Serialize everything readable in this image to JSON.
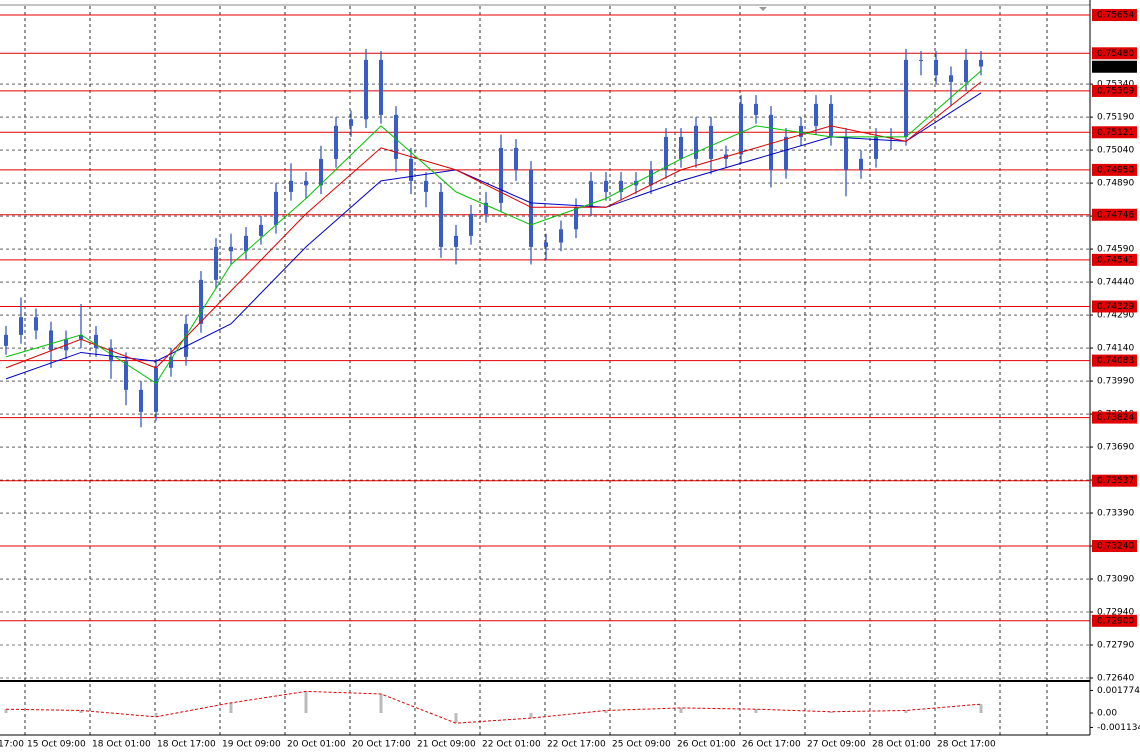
{
  "chart_data": {
    "type": "candlestick",
    "x_labels": [
      "17:00",
      "15 Oct 09:00",
      "18 Oct 01:00",
      "18 Oct 17:00",
      "19 Oct 09:00",
      "20 Oct 01:00",
      "20 Oct 17:00",
      "21 Oct 09:00",
      "22 Oct 01:00",
      "22 Oct 17:00",
      "25 Oct 09:00",
      "26 Oct 01:00",
      "26 Oct 17:00",
      "27 Oct 09:00",
      "28 Oct 01:00",
      "28 Oct 17:00"
    ],
    "open": [
      0.7415,
      0.742,
      0.7428,
      0.7422,
      0.7413,
      0.7418,
      0.742,
      0.7414,
      0.7408,
      0.7395,
      0.7385,
      0.7405,
      0.741,
      0.7425,
      0.7445,
      0.746,
      0.7458,
      0.7465,
      0.747,
      0.7485,
      0.749,
      0.7488,
      0.75,
      0.7515,
      0.7518,
      0.7545,
      0.752,
      0.75,
      0.749,
      0.7485,
      0.746,
      0.7465,
      0.7475,
      0.748,
      0.7505,
      0.7495,
      0.746,
      0.7462,
      0.7468,
      0.7478,
      0.749,
      0.7485,
      0.749,
      0.7488,
      0.7495,
      0.751,
      0.75,
      0.7515,
      0.75,
      0.7502,
      0.7525,
      0.752,
      0.7495,
      0.751,
      0.7515,
      0.7525,
      0.751,
      0.7495,
      0.75,
      0.751,
      0.751,
      0.7545,
      0.7545,
      0.7538,
      0.7535,
      0.7545
    ],
    "high": [
      0.7424,
      0.7437,
      0.7432,
      0.7426,
      0.7422,
      0.7434,
      0.7424,
      0.7418,
      0.7412,
      0.7399,
      0.7409,
      0.7414,
      0.7429,
      0.7449,
      0.7464,
      0.7466,
      0.7469,
      0.7474,
      0.7489,
      0.7498,
      0.7494,
      0.7506,
      0.7519,
      0.7522,
      0.755,
      0.7549,
      0.7524,
      0.7505,
      0.7494,
      0.7489,
      0.747,
      0.7479,
      0.7485,
      0.7511,
      0.7509,
      0.7499,
      0.7466,
      0.7472,
      0.7482,
      0.7494,
      0.7494,
      0.7494,
      0.7494,
      0.7499,
      0.7514,
      0.7514,
      0.7519,
      0.7519,
      0.7506,
      0.7529,
      0.7529,
      0.7524,
      0.7514,
      0.7519,
      0.7529,
      0.7529,
      0.7514,
      0.7504,
      0.7514,
      0.7514,
      0.755,
      0.7549,
      0.7549,
      0.7542,
      0.755,
      0.7549
    ],
    "low": [
      0.7411,
      0.7416,
      0.7418,
      0.7405,
      0.7409,
      0.7414,
      0.741,
      0.74,
      0.7388,
      0.7378,
      0.7381,
      0.7401,
      0.7406,
      0.7421,
      0.7441,
      0.7452,
      0.7454,
      0.7461,
      0.7466,
      0.7481,
      0.7482,
      0.7484,
      0.7496,
      0.751,
      0.7514,
      0.7516,
      0.7494,
      0.7484,
      0.7478,
      0.7455,
      0.7452,
      0.7461,
      0.7471,
      0.7476,
      0.749,
      0.7452,
      0.7454,
      0.7458,
      0.7464,
      0.7474,
      0.7481,
      0.7481,
      0.7484,
      0.7484,
      0.7491,
      0.7496,
      0.7496,
      0.7493,
      0.7496,
      0.7498,
      0.7516,
      0.7487,
      0.7491,
      0.7506,
      0.7511,
      0.7506,
      0.7483,
      0.7491,
      0.7496,
      0.7504,
      0.7506,
      0.7538,
      0.7534,
      0.7524,
      0.7531,
      0.7538
    ],
    "close": [
      0.742,
      0.7428,
      0.7422,
      0.7413,
      0.7418,
      0.742,
      0.7414,
      0.7408,
      0.7395,
      0.7385,
      0.7405,
      0.741,
      0.7425,
      0.7445,
      0.746,
      0.7458,
      0.7465,
      0.747,
      0.7485,
      0.749,
      0.7488,
      0.75,
      0.7515,
      0.7518,
      0.7545,
      0.752,
      0.75,
      0.749,
      0.7485,
      0.746,
      0.7465,
      0.7475,
      0.748,
      0.7505,
      0.7495,
      0.746,
      0.7462,
      0.7468,
      0.7478,
      0.749,
      0.7485,
      0.749,
      0.7488,
      0.7495,
      0.751,
      0.75,
      0.7515,
      0.75,
      0.7502,
      0.7525,
      0.752,
      0.7495,
      0.751,
      0.7515,
      0.7525,
      0.751,
      0.7495,
      0.75,
      0.751,
      0.751,
      0.7545,
      0.7545,
      0.7538,
      0.7535,
      0.7545,
      0.7542
    ],
    "candle_color": "#3a5cc7",
    "ma_x": [
      0,
      5,
      10,
      15,
      20,
      25,
      30,
      35,
      40,
      45,
      50,
      55,
      60,
      65
    ],
    "series": [
      {
        "color": "#0000c8",
        "values": [
          0.74,
          0.7412,
          0.7408,
          0.7425,
          0.746,
          0.749,
          0.7495,
          0.748,
          0.7478,
          0.749,
          0.75,
          0.751,
          0.7508,
          0.753
        ]
      },
      {
        "color": "#e00000",
        "values": [
          0.7405,
          0.7418,
          0.7405,
          0.744,
          0.7475,
          0.7505,
          0.7495,
          0.7478,
          0.7478,
          0.7495,
          0.7505,
          0.7515,
          0.7508,
          0.7535
        ]
      },
      {
        "color": "#00c000",
        "values": [
          0.741,
          0.742,
          0.7398,
          0.7452,
          0.7482,
          0.7515,
          0.7485,
          0.747,
          0.7482,
          0.75,
          0.7515,
          0.751,
          0.751,
          0.754
        ]
      }
    ],
    "ylim": [
      0.7264,
      0.75686
    ],
    "yticks": [
      {
        "value": 0.7534,
        "label": "0.75340"
      },
      {
        "value": 0.7519,
        "label": "0.75190"
      },
      {
        "value": 0.7504,
        "label": "0.75040"
      },
      {
        "value": 0.7489,
        "label": "0.74890"
      },
      {
        "value": 0.7474,
        "label": "0.74740"
      },
      {
        "value": 0.7459,
        "label": "0.74590"
      },
      {
        "value": 0.7444,
        "label": "0.74440"
      },
      {
        "value": 0.7429,
        "label": "0.74290"
      },
      {
        "value": 0.7414,
        "label": "0.74140"
      },
      {
        "value": 0.7399,
        "label": "0.73990"
      },
      {
        "value": 0.7384,
        "label": "0.73840"
      },
      {
        "value": 0.7369,
        "label": "0.73690"
      },
      {
        "value": 0.7354,
        "label": "0.73540"
      },
      {
        "value": 0.7339,
        "label": "0.73390"
      },
      {
        "value": 0.7324,
        "label": "0.73240"
      },
      {
        "value": 0.7309,
        "label": "0.73090"
      },
      {
        "value": 0.7294,
        "label": "0.72940"
      },
      {
        "value": 0.7279,
        "label": "0.72790"
      },
      {
        "value": 0.7264,
        "label": "0.72640"
      }
    ],
    "levels": [
      0.75654,
      {
        "value": 0.7548,
        "label": "0.75480"
      },
      0.75309,
      0.75121,
      {
        "value": 0.7495,
        "label": "0.74950"
      },
      0.74746,
      0.74541,
      0.74329,
      0.74083,
      0.73824,
      0.73537,
      {
        "value": 0.7324,
        "label": "0.73240"
      },
      {
        "value": 0.729,
        "label": "0.72900"
      }
    ],
    "level_color": "#e00000",
    "current_price": 0.75419,
    "oscillator": {
      "color": "#e00000",
      "values": [
        0.0003,
        0.0002,
        -0.0003,
        0.0008,
        0.0017,
        0.0015,
        -0.0008,
        -0.0004,
        0.0002,
        0.0004,
        0.0003,
        0.0001,
        0.0002,
        0.0007
      ]
    },
    "y2lim": [
      -0.00173,
      0.00244
    ],
    "y2ticks": [
      0.001774,
      {
        "value": 0,
        "label": "0.00"
      },
      -0.001134
    ],
    "grid": true
  }
}
